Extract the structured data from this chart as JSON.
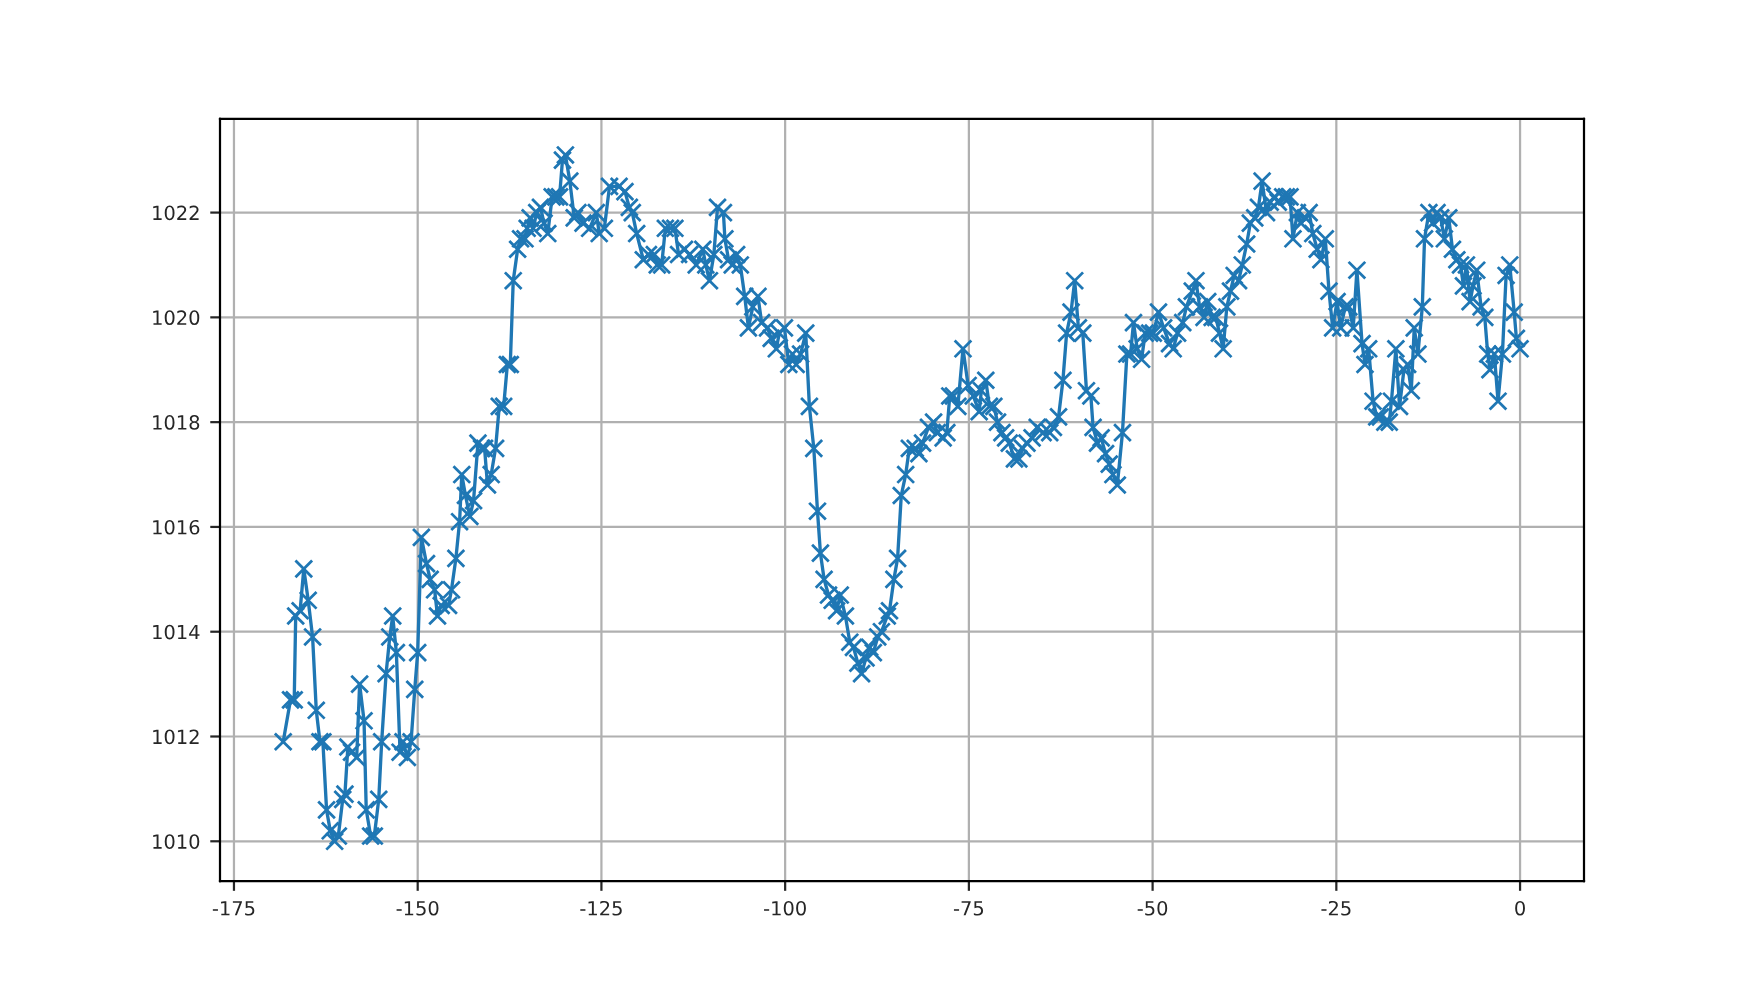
{
  "chart_data": {
    "type": "line",
    "xlim": [
      -176.9,
      8.7
    ],
    "ylim": [
      1009.24,
      1023.79
    ],
    "xticks": [
      -175,
      -150,
      -125,
      -100,
      -75,
      -50,
      -25,
      0
    ],
    "yticks": [
      1010,
      1012,
      1014,
      1016,
      1018,
      1020,
      1022
    ],
    "grid": true,
    "marker": "cross",
    "line_style": "solid",
    "series": [
      {
        "color": "#1f77b4",
        "x": [
          -168.3,
          -167.3,
          -166.8,
          -166.6,
          -166.0,
          -165.5,
          -164.9,
          -164.3,
          -163.8,
          -163.3,
          -162.9,
          -162.4,
          -161.9,
          -161.3,
          -160.8,
          -160.2,
          -159.9,
          -159.5,
          -159.0,
          -158.3,
          -157.9,
          -157.3,
          -157.0,
          -156.4,
          -155.9,
          -155.3,
          -154.9,
          -154.3,
          -153.8,
          -153.4,
          -152.9,
          -152.4,
          -152.0,
          -151.4,
          -150.9,
          -150.4,
          -150.0,
          -149.5,
          -148.8,
          -148.3,
          -147.7,
          -147.3,
          -146.8,
          -145.8,
          -145.4,
          -144.8,
          -144.3,
          -144.0,
          -143.5,
          -142.9,
          -142.4,
          -141.8,
          -141.3,
          -140.9,
          -140.5,
          -140.0,
          -139.4,
          -138.9,
          -138.3,
          -137.8,
          -137.4,
          -137.0,
          -136.4,
          -136.0,
          -135.4,
          -135.1,
          -134.7,
          -134.3,
          -133.8,
          -133.3,
          -132.8,
          -132.3,
          -131.7,
          -131.2,
          -130.7,
          -130.3,
          -129.9,
          -129.3,
          -128.7,
          -128.2,
          -127.5,
          -126.6,
          -125.7,
          -125.3,
          -124.6,
          -123.9,
          -122.6,
          -121.8,
          -121.2,
          -120.8,
          -120.2,
          -119.3,
          -118.6,
          -117.8,
          -117.4,
          -116.8,
          -116.3,
          -115.6,
          -115.0,
          -114.5,
          -113.7,
          -113.0,
          -112.1,
          -111.2,
          -110.8,
          -110.3,
          -109.7,
          -109.2,
          -108.4,
          -108.2,
          -107.7,
          -107.2,
          -106.6,
          -106.1,
          -105.5,
          -105.0,
          -104.4,
          -103.7,
          -103.2,
          -102.4,
          -101.9,
          -101.2,
          -100.8,
          -100.1,
          -99.5,
          -99.0,
          -98.5,
          -97.9,
          -97.2,
          -96.7,
          -96.1,
          -95.6,
          -95.2,
          -94.7,
          -94.1,
          -93.6,
          -93.0,
          -92.5,
          -91.8,
          -91.2,
          -90.7,
          -90.1,
          -89.6,
          -89.0,
          -88.5,
          -88.0,
          -87.4,
          -86.9,
          -86.1,
          -85.8,
          -85.2,
          -84.7,
          -84.2,
          -83.6,
          -83.1,
          -82.3,
          -81.8,
          -81.3,
          -80.5,
          -79.8,
          -79.3,
          -78.5,
          -78.0,
          -77.6,
          -77.1,
          -76.5,
          -75.8,
          -75.1,
          -74.4,
          -73.6,
          -73.3,
          -72.7,
          -72.2,
          -71.6,
          -71.1,
          -70.5,
          -70.0,
          -69.5,
          -68.8,
          -68.2,
          -67.7,
          -67.1,
          -66.4,
          -65.7,
          -64.9,
          -64.0,
          -63.5,
          -62.8,
          -62.2,
          -61.7,
          -61.1,
          -60.6,
          -60.1,
          -59.5,
          -59.0,
          -58.4,
          -58.1,
          -57.5,
          -57.0,
          -56.4,
          -55.9,
          -55.4,
          -54.8,
          -54.1,
          -53.5,
          -53.0,
          -52.6,
          -52.1,
          -51.5,
          -51.0,
          -50.4,
          -49.9,
          -49.2,
          -48.5,
          -47.7,
          -47.2,
          -46.6,
          -45.9,
          -45.4,
          -44.6,
          -44.1,
          -43.6,
          -43.0,
          -42.5,
          -41.9,
          -41.4,
          -40.9,
          -40.4,
          -39.9,
          -39.4,
          -38.9,
          -38.3,
          -37.8,
          -37.2,
          -36.7,
          -36.1,
          -35.6,
          -35.1,
          -34.5,
          -34.0,
          -33.4,
          -32.9,
          -32.3,
          -31.8,
          -31.3,
          -30.9,
          -30.3,
          -29.8,
          -29.2,
          -28.7,
          -28.2,
          -27.6,
          -27.1,
          -26.5,
          -26.0,
          -25.5,
          -24.9,
          -24.4,
          -23.8,
          -23.3,
          -22.7,
          -22.2,
          -21.5,
          -21.1,
          -20.6,
          -20.0,
          -19.5,
          -19.0,
          -18.4,
          -17.8,
          -17.5,
          -16.9,
          -16.4,
          -15.8,
          -15.3,
          -14.8,
          -14.4,
          -13.9,
          -13.3,
          -13.0,
          -12.4,
          -11.9,
          -11.3,
          -10.8,
          -10.3,
          -9.7,
          -9.2,
          -8.6,
          -8.1,
          -7.7,
          -7.3,
          -6.8,
          -6.4,
          -5.9,
          -5.3,
          -4.8,
          -4.4,
          -4.1,
          -3.5,
          -3.0,
          -2.4,
          -1.9,
          -1.4,
          -0.8,
          -0.5,
          0.0
        ],
        "values": [
          1011.9,
          1012.7,
          1012.7,
          1014.3,
          1014.4,
          1015.2,
          1014.6,
          1013.9,
          1012.5,
          1011.9,
          1011.9,
          1010.6,
          1010.2,
          1010.0,
          1010.1,
          1010.8,
          1010.9,
          1011.8,
          1011.7,
          1011.6,
          1013.0,
          1012.3,
          1010.6,
          1010.1,
          1010.1,
          1010.8,
          1011.9,
          1013.2,
          1013.9,
          1014.3,
          1013.6,
          1011.7,
          1011.9,
          1011.6,
          1011.9,
          1012.9,
          1013.6,
          1015.8,
          1015.3,
          1015.0,
          1014.8,
          1014.3,
          1014.5,
          1014.5,
          1014.8,
          1015.4,
          1016.1,
          1017.0,
          1016.6,
          1016.2,
          1016.5,
          1017.6,
          1017.5,
          1017.5,
          1016.8,
          1017.0,
          1017.5,
          1018.3,
          1018.3,
          1019.1,
          1019.1,
          1020.7,
          1021.3,
          1021.5,
          1021.5,
          1021.7,
          1021.9,
          1021.7,
          1022.0,
          1022.1,
          1021.8,
          1021.6,
          1022.3,
          1022.3,
          1022.3,
          1023.0,
          1023.1,
          1022.6,
          1021.9,
          1022.0,
          1021.8,
          1021.7,
          1022.0,
          1021.6,
          1021.7,
          1022.5,
          1022.5,
          1022.4,
          1022.1,
          1022.0,
          1021.6,
          1021.1,
          1021.2,
          1021.2,
          1021.0,
          1021.0,
          1021.7,
          1021.7,
          1021.7,
          1021.2,
          1021.3,
          1021.2,
          1021.0,
          1021.3,
          1021.0,
          1020.7,
          1021.2,
          1022.1,
          1022.0,
          1021.5,
          1021.1,
          1021.0,
          1021.2,
          1021.0,
          1020.4,
          1019.8,
          1020.2,
          1020.4,
          1019.9,
          1019.8,
          1019.6,
          1019.4,
          1019.7,
          1019.8,
          1019.1,
          1019.3,
          1019.1,
          1019.3,
          1019.7,
          1018.3,
          1017.5,
          1016.3,
          1015.5,
          1015.0,
          1014.7,
          1014.6,
          1014.4,
          1014.7,
          1014.3,
          1013.8,
          1013.7,
          1013.4,
          1013.2,
          1013.5,
          1013.7,
          1013.6,
          1013.9,
          1014.0,
          1014.3,
          1014.4,
          1015.0,
          1015.4,
          1016.6,
          1017.0,
          1017.5,
          1017.5,
          1017.4,
          1017.6,
          1017.9,
          1018.0,
          1017.8,
          1017.7,
          1017.8,
          1018.5,
          1018.5,
          1018.3,
          1019.4,
          1018.7,
          1018.5,
          1018.2,
          1018.6,
          1018.8,
          1018.3,
          1018.3,
          1018.0,
          1017.8,
          1017.7,
          1017.6,
          1017.3,
          1017.3,
          1017.5,
          1017.6,
          1017.7,
          1017.9,
          1017.8,
          1017.8,
          1017.9,
          1018.1,
          1018.8,
          1019.7,
          1020.1,
          1020.7,
          1019.8,
          1019.7,
          1018.6,
          1018.5,
          1017.9,
          1017.6,
          1017.7,
          1017.4,
          1017.2,
          1017.0,
          1016.8,
          1017.8,
          1019.3,
          1019.3,
          1019.9,
          1019.4,
          1019.2,
          1019.7,
          1019.7,
          1019.7,
          1020.1,
          1019.8,
          1019.5,
          1019.4,
          1019.7,
          1019.9,
          1020.2,
          1020.5,
          1020.7,
          1020.2,
          1020.0,
          1020.3,
          1020.0,
          1020.0,
          1019.7,
          1019.4,
          1020.2,
          1020.5,
          1020.8,
          1020.7,
          1021.0,
          1021.4,
          1021.8,
          1021.9,
          1022.1,
          1022.6,
          1022.0,
          1022.2,
          1022.3,
          1022.2,
          1022.3,
          1022.3,
          1022.3,
          1021.5,
          1022.0,
          1021.8,
          1021.9,
          1022.0,
          1021.6,
          1021.3,
          1021.1,
          1021.5,
          1020.5,
          1019.8,
          1020.3,
          1019.8,
          1020.2,
          1020.2,
          1019.8,
          1020.9,
          1019.5,
          1019.1,
          1019.4,
          1018.4,
          1018.1,
          1018.1,
          1018.0,
          1018.0,
          1018.4,
          1019.4,
          1018.3,
          1019.0,
          1019.1,
          1018.6,
          1019.8,
          1019.3,
          1020.2,
          1021.5,
          1022.0,
          1021.8,
          1022.0,
          1021.9,
          1021.5,
          1021.9,
          1021.3,
          1021.1,
          1021.0,
          1020.6,
          1021.0,
          1020.3,
          1020.6,
          1020.9,
          1020.2,
          1020.0,
          1019.3,
          1019.0,
          1019.3,
          1018.4,
          1019.3,
          1020.8,
          1021.0,
          1020.1,
          1019.6,
          1019.4
        ]
      }
    ]
  }
}
